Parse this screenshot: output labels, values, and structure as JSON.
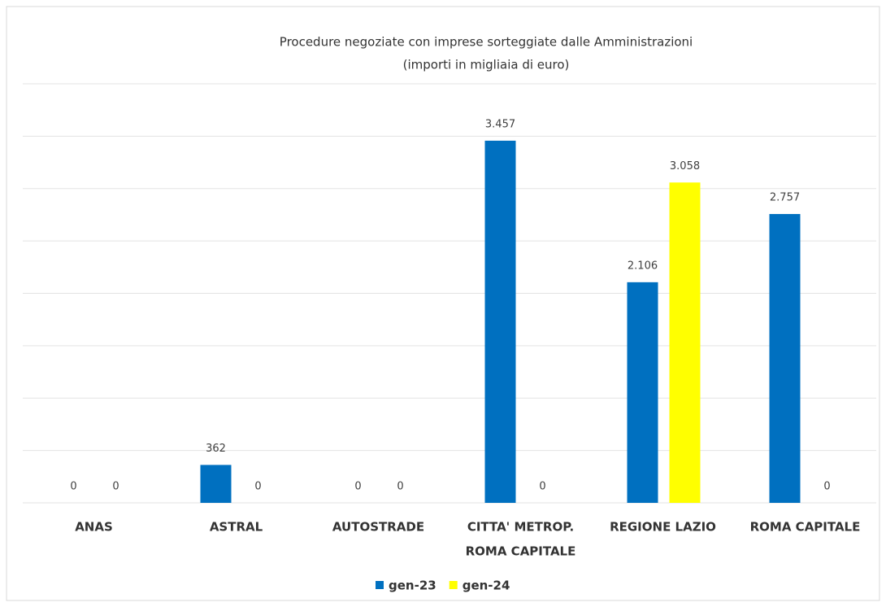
{
  "chart_data": {
    "type": "bar",
    "title": [
      "Procedure negoziate con imprese sorteggiate dalle Amministrazioni",
      "(importi in migliaia di euro)"
    ],
    "categories": [
      [
        "ANAS"
      ],
      [
        "ASTRAL"
      ],
      [
        "AUTOSTRADE"
      ],
      [
        "CITTA' METROP.",
        "ROMA CAPITALE"
      ],
      [
        "REGIONE LAZIO"
      ],
      [
        "ROMA CAPITALE"
      ]
    ],
    "series": [
      {
        "name": "gen-23",
        "color": "#0070c0",
        "values": [
          0,
          362,
          0,
          3457,
          2106,
          2757
        ],
        "value_labels": [
          "0",
          "362",
          "0",
          "3.457",
          "2.106",
          "2.757"
        ]
      },
      {
        "name": "gen-24",
        "color": "#ffff00",
        "values": [
          0,
          0,
          0,
          0,
          3058,
          0
        ],
        "value_labels": [
          "0",
          "0",
          "0",
          "0",
          "3.058",
          "0"
        ]
      }
    ],
    "ylim": [
      0,
      4000
    ],
    "yticks": [
      0,
      500,
      1000,
      1500,
      2000,
      2500,
      3000,
      3500,
      4000
    ],
    "grid": true,
    "legend": "bottom"
  }
}
